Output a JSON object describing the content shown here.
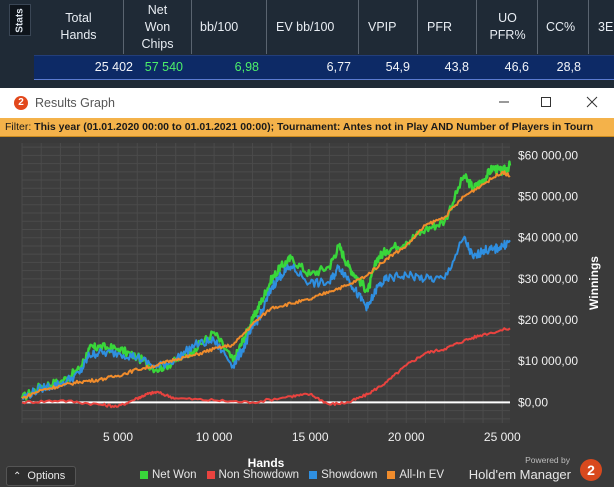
{
  "stats": {
    "tab_label": "Stats",
    "columns": [
      {
        "header": "Total\nHands",
        "value": "25 402",
        "accent": false
      },
      {
        "header": "Net\nWon\nChips",
        "value": "57 540",
        "accent": true
      },
      {
        "header": "bb/100",
        "value": "6,98",
        "accent": true
      },
      {
        "header": "EV bb/100",
        "value": "6,77",
        "accent": false
      },
      {
        "header": "VPIP",
        "value": "54,9",
        "accent": false
      },
      {
        "header": "PFR",
        "value": "43,8",
        "accent": false
      },
      {
        "header": "UO\nPFR%",
        "value": "46,6",
        "accent": false
      },
      {
        "header": "CC%",
        "value": "28,8",
        "accent": false
      },
      {
        "header": "3E",
        "value": "",
        "accent": false
      }
    ]
  },
  "window": {
    "title": "Results Graph",
    "app_icon_label": "2",
    "controls": [
      "minimize",
      "maximize",
      "close"
    ]
  },
  "filter": {
    "label": "Filter:",
    "text": "This year (01.01.2020 00:00 to 01.01.2021 00:00); Tournament: Antes not in Play  AND Number of Players in Tourn"
  },
  "chart_data": {
    "type": "line",
    "xlabel": "Hands",
    "ylabel": "Winnings",
    "xlim": [
      0,
      25402
    ],
    "ylim": [
      -5000,
      63000
    ],
    "x_ticks": [
      5000,
      10000,
      15000,
      20000,
      25000
    ],
    "x_tick_labels": [
      "5 000",
      "10 000",
      "15 000",
      "20 000",
      "25 000"
    ],
    "y_ticks": [
      0,
      10000,
      20000,
      30000,
      40000,
      50000,
      60000
    ],
    "y_tick_labels": [
      "$0,00",
      "$10 000,00",
      "$20 000,00",
      "$30 000,00",
      "$40 000,00",
      "$50 000,00",
      "$60 000,00"
    ],
    "grid": true,
    "legend_position": "bottom",
    "series": [
      {
        "name": "Net Won",
        "color": "#39d63a",
        "x": [
          0,
          1000,
          2000,
          3000,
          3500,
          4000,
          5000,
          6000,
          7000,
          8000,
          9000,
          10000,
          11000,
          11500,
          12000,
          12500,
          13000,
          13500,
          14000,
          15000,
          16000,
          16500,
          17000,
          17500,
          18000,
          18500,
          19000,
          20000,
          21000,
          22000,
          23000,
          23500,
          24000,
          24500,
          25000,
          25402
        ],
        "values": [
          1000,
          4000,
          5000,
          8000,
          13000,
          13500,
          13000,
          11000,
          8000,
          10000,
          13000,
          17000,
          10000,
          15000,
          20000,
          25000,
          30000,
          33000,
          35000,
          31000,
          33000,
          38000,
          33000,
          30000,
          27000,
          35000,
          37000,
          39000,
          42000,
          44000,
          55000,
          52000,
          54000,
          57000,
          56000,
          57540
        ]
      },
      {
        "name": "Non Showdown",
        "color": "#e9433f",
        "x": [
          0,
          2000,
          4000,
          5000,
          6000,
          6500,
          7000,
          8000,
          10000,
          12000,
          14000,
          15000,
          16000,
          17000,
          18000,
          19000,
          20000,
          21000,
          22000,
          23000,
          24000,
          25402
        ],
        "values": [
          0,
          500,
          -500,
          -1000,
          1000,
          2000,
          2500,
          1000,
          500,
          0,
          1500,
          2000,
          -500,
          0,
          2000,
          5000,
          9000,
          12000,
          13000,
          15000,
          16500,
          18000
        ]
      },
      {
        "name": "Showdown",
        "color": "#2f8fe0",
        "x": [
          0,
          1000,
          2000,
          3000,
          3500,
          4000,
          5000,
          6000,
          7000,
          8000,
          9000,
          10000,
          11000,
          11500,
          12000,
          12500,
          13000,
          13500,
          14000,
          15000,
          16000,
          16500,
          17000,
          17500,
          18000,
          18500,
          19000,
          20000,
          21000,
          22000,
          23000,
          23500,
          24000,
          24500,
          25000,
          25402
        ],
        "values": [
          1000,
          3500,
          4500,
          7000,
          11500,
          12000,
          12000,
          11000,
          8500,
          10500,
          14000,
          15000,
          9000,
          13000,
          18000,
          22000,
          28000,
          31000,
          33000,
          29000,
          29000,
          33000,
          30000,
          26000,
          23000,
          28000,
          30000,
          31000,
          30000,
          30000,
          40000,
          35000,
          37000,
          37000,
          38000,
          39000
        ]
      },
      {
        "name": "All-In EV",
        "color": "#f08c2c",
        "x": [
          0,
          1000,
          2000,
          3000,
          4000,
          5000,
          6000,
          7000,
          8000,
          9000,
          10000,
          11000,
          12000,
          13000,
          14000,
          15000,
          16000,
          17000,
          18000,
          19000,
          20000,
          21000,
          22000,
          23000,
          24000,
          25000,
          25402
        ],
        "values": [
          1000,
          3000,
          4000,
          5000,
          5500,
          6500,
          8000,
          9000,
          10500,
          11500,
          13000,
          14000,
          19000,
          23000,
          24000,
          25000,
          27000,
          28500,
          31000,
          35000,
          38000,
          43000,
          45000,
          50000,
          53000,
          56000,
          55000
        ]
      }
    ]
  },
  "bottom": {
    "options_label": "Options",
    "powered_by": "Powered by",
    "brand_name": "Hold'em Manager",
    "brand_icon_label": "2"
  },
  "colors": {
    "accent_green": "#4cf06a",
    "selected_row": "#0d2a66",
    "filter_bar": "#f4b24a",
    "chart_bg": "#3a3a3a"
  }
}
